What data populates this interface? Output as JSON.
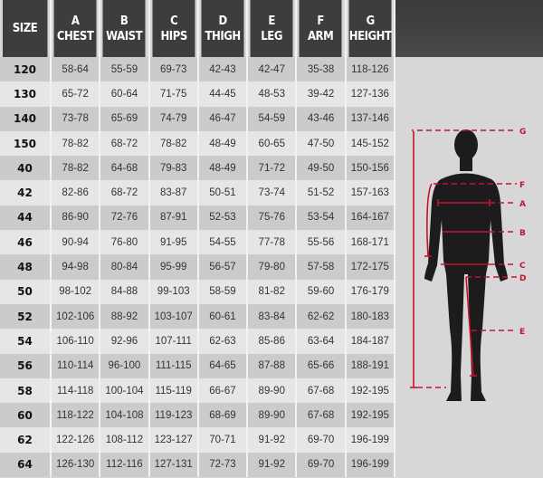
{
  "headers": [
    {
      "letter": "",
      "label": "SIZE"
    },
    {
      "letter": "A",
      "label": "CHEST"
    },
    {
      "letter": "B",
      "label": "WAIST"
    },
    {
      "letter": "C",
      "label": "HIPS"
    },
    {
      "letter": "D",
      "label": "THIGH"
    },
    {
      "letter": "E",
      "label": "LEG"
    },
    {
      "letter": "F",
      "label": "ARM"
    },
    {
      "letter": "G",
      "label": "HEIGHT"
    }
  ],
  "rows": [
    [
      "120",
      "58-64",
      "55-59",
      "69-73",
      "42-43",
      "42-47",
      "35-38",
      "118-126"
    ],
    [
      "130",
      "65-72",
      "60-64",
      "71-75",
      "44-45",
      "48-53",
      "39-42",
      "127-136"
    ],
    [
      "140",
      "73-78",
      "65-69",
      "74-79",
      "46-47",
      "54-59",
      "43-46",
      "137-146"
    ],
    [
      "150",
      "78-82",
      "68-72",
      "78-82",
      "48-49",
      "60-65",
      "47-50",
      "145-152"
    ],
    [
      "40",
      "78-82",
      "64-68",
      "79-83",
      "48-49",
      "71-72",
      "49-50",
      "150-156"
    ],
    [
      "42",
      "82-86",
      "68-72",
      "83-87",
      "50-51",
      "73-74",
      "51-52",
      "157-163"
    ],
    [
      "44",
      "86-90",
      "72-76",
      "87-91",
      "52-53",
      "75-76",
      "53-54",
      "164-167"
    ],
    [
      "46",
      "90-94",
      "76-80",
      "91-95",
      "54-55",
      "77-78",
      "55-56",
      "168-171"
    ],
    [
      "48",
      "94-98",
      "80-84",
      "95-99",
      "56-57",
      "79-80",
      "57-58",
      "172-175"
    ],
    [
      "50",
      "98-102",
      "84-88",
      "99-103",
      "58-59",
      "81-82",
      "59-60",
      "176-179"
    ],
    [
      "52",
      "102-106",
      "88-92",
      "103-107",
      "60-61",
      "83-84",
      "62-62",
      "180-183"
    ],
    [
      "54",
      "106-110",
      "92-96",
      "107-111",
      "62-63",
      "85-86",
      "63-64",
      "184-187"
    ],
    [
      "56",
      "110-114",
      "96-100",
      "111-115",
      "64-65",
      "87-88",
      "65-66",
      "188-191"
    ],
    [
      "58",
      "114-118",
      "100-104",
      "115-119",
      "66-67",
      "89-90",
      "67-68",
      "192-195"
    ],
    [
      "60",
      "118-122",
      "104-108",
      "119-123",
      "68-69",
      "89-90",
      "67-68",
      "192-195"
    ],
    [
      "62",
      "122-126",
      "108-112",
      "123-127",
      "70-71",
      "91-92",
      "69-70",
      "196-199"
    ],
    [
      "64",
      "126-130",
      "112-116",
      "127-131",
      "72-73",
      "91-92",
      "69-70",
      "196-199"
    ]
  ],
  "figure_labels": {
    "g": "G",
    "f": "F",
    "a": "A",
    "b": "B",
    "c": "C",
    "d": "D",
    "e": "E"
  },
  "colors": {
    "header": "#3d3d3d",
    "measure_line": "#c8102e",
    "silhouette": "#1c1c1c"
  }
}
